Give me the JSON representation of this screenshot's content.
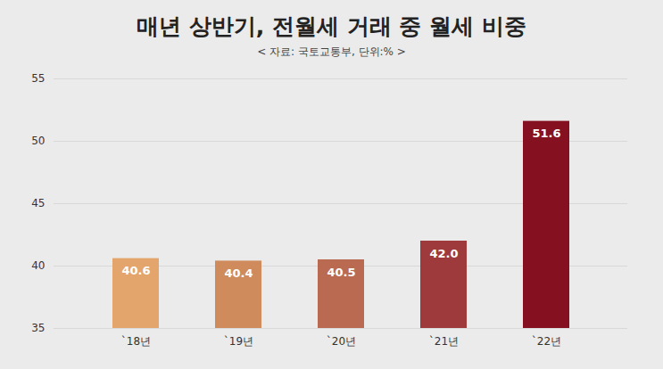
{
  "chart_data": {
    "type": "bar",
    "title": "매년 상반기, 전월세 거래 중 월세 비중",
    "subtitle": "< 자료: 국토교통부, 단위:% >",
    "categories": [
      "`18년",
      "`19년",
      "`20년",
      "`21년",
      "`22년"
    ],
    "values": [
      40.6,
      40.4,
      40.5,
      42.0,
      51.6
    ],
    "value_labels": [
      "40.6",
      "40.4",
      "40.5",
      "42.0",
      "51.6"
    ],
    "colors": [
      "#e3a56c",
      "#cf8b5c",
      "#b96a50",
      "#9e3a3c",
      "#85101f"
    ],
    "ylim": [
      35,
      55
    ],
    "yticks": [
      35,
      40,
      45,
      50,
      55
    ],
    "grid": true,
    "data_labels": true
  }
}
